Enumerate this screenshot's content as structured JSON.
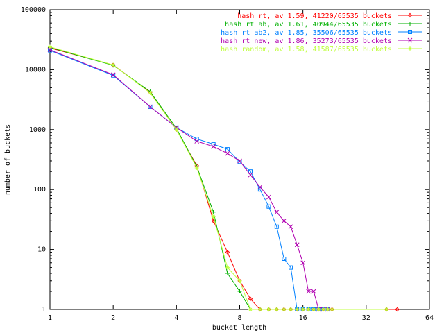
{
  "chart_data": {
    "type": "line",
    "title": "",
    "xlabel": "bucket length",
    "ylabel": "number of buckets",
    "x_scale": "log2",
    "y_scale": "log10",
    "xlim": [
      1,
      64
    ],
    "ylim": [
      1,
      100000
    ],
    "x_ticks": [
      1,
      2,
      4,
      8,
      16,
      32,
      64
    ],
    "x_tick_labels": [
      "1",
      "2",
      "4",
      "8",
      "16",
      "32",
      "64"
    ],
    "y_ticks": [
      1,
      10,
      100,
      1000,
      10000,
      100000
    ],
    "y_tick_labels": [
      "1",
      "10",
      "100",
      "1000",
      "10000",
      "100000"
    ],
    "grid": false,
    "legend_position": "top-right",
    "series": [
      {
        "name": "hash rt, av 1.59, 41220/65535 buckets",
        "color": "#ff0000",
        "marker": "diamond",
        "x": [
          1,
          2,
          3,
          4,
          5,
          6,
          7,
          8,
          9,
          10,
          11,
          12,
          13,
          14,
          15,
          16,
          17,
          18,
          19,
          20,
          21,
          22,
          40,
          45
        ],
        "y": [
          23000,
          12000,
          4200,
          1000,
          250,
          30,
          9,
          3,
          1.5,
          1,
          1,
          1,
          1,
          1,
          1,
          1,
          1,
          1,
          1,
          1,
          1,
          1,
          1,
          1
        ]
      },
      {
        "name": "hash rt ab, av 1.61, 40944/65535 buckets",
        "color": "#00b000",
        "marker": "plus",
        "x": [
          1,
          2,
          3,
          4,
          5,
          6,
          7,
          8,
          9,
          10,
          11,
          12,
          13,
          14,
          15,
          16,
          17,
          18,
          19,
          20,
          21,
          22,
          40
        ],
        "y": [
          23500,
          11800,
          4300,
          1050,
          240,
          42,
          4,
          2,
          1,
          1,
          1,
          1,
          1,
          1,
          1,
          1,
          1,
          1,
          1,
          1,
          1,
          1,
          1
        ]
      },
      {
        "name": "hash rt ab2, av 1.85, 35506/65535 buckets",
        "color": "#0080ff",
        "marker": "square",
        "x": [
          1,
          2,
          3,
          4,
          5,
          6,
          7,
          8,
          9,
          10,
          11,
          12,
          13,
          14,
          15,
          16,
          17,
          18,
          19,
          20,
          21
        ],
        "y": [
          21000,
          8000,
          2400,
          1080,
          700,
          570,
          470,
          290,
          200,
          100,
          52,
          24,
          7,
          5,
          1,
          1,
          1,
          1,
          1,
          1,
          1
        ]
      },
      {
        "name": "hash rt new, av 1.86, 35273/65535 buckets",
        "color": "#b000b0",
        "marker": "x",
        "x": [
          1,
          2,
          3,
          4,
          5,
          6,
          7,
          8,
          9,
          10,
          11,
          12,
          13,
          14,
          15,
          16,
          17,
          18,
          19,
          20,
          21
        ],
        "y": [
          21500,
          8200,
          2400,
          1080,
          640,
          520,
          400,
          300,
          175,
          110,
          75,
          42,
          30,
          24,
          12,
          6,
          2,
          2,
          1,
          1,
          1
        ]
      },
      {
        "name": "hash random, av 1.58, 41587/65535 buckets",
        "color": "#c0ff40",
        "marker": "star",
        "x": [
          1,
          2,
          3,
          4,
          5,
          6,
          7,
          8,
          9,
          10,
          11,
          12,
          13,
          14,
          15,
          16,
          17,
          18,
          19,
          20,
          21,
          22,
          40
        ],
        "y": [
          24000,
          12000,
          4100,
          1000,
          230,
          35,
          5,
          3,
          1,
          1,
          1,
          1,
          1,
          1,
          1,
          1,
          1,
          1,
          1,
          1,
          1,
          1,
          1
        ]
      }
    ]
  }
}
